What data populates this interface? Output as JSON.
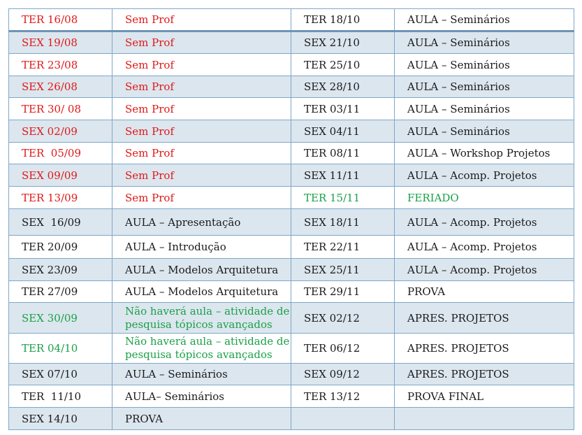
{
  "colors": {
    "red": "#e01818",
    "green": "#1aa048",
    "black": "#1a1a1a",
    "stripe": "#dce6ee",
    "border": "#7fa7c9"
  },
  "rows": [
    {
      "d1": "TER 16/08",
      "a1": "Sem Prof",
      "c1": "red",
      "d2": "TER 18/10",
      "a2": "AULA – Seminários",
      "c2": "black"
    },
    {
      "d1": "SEX 19/08",
      "a1": "Sem Prof",
      "c1": "red",
      "d2": "SEX 21/10",
      "a2": "AULA – Seminários",
      "c2": "black"
    },
    {
      "d1": "TER 23/08",
      "a1": "Sem Prof",
      "c1": "red",
      "d2": "TER 25/10",
      "a2": "AULA – Seminários",
      "c2": "black"
    },
    {
      "d1": "SEX 26/08",
      "a1": "Sem Prof",
      "c1": "red",
      "d2": "SEX 28/10",
      "a2": "AULA – Seminários",
      "c2": "black"
    },
    {
      "d1": "TER 30/ 08",
      "a1": "Sem Prof",
      "c1": "red",
      "d2": "TER 03/11",
      "a2": "AULA – Seminários",
      "c2": "black"
    },
    {
      "d1": "SEX 02/09",
      "a1": "Sem Prof",
      "c1": "red",
      "d2": "SEX 04/11",
      "a2": "AULA – Seminários",
      "c2": "black"
    },
    {
      "d1": "TER  05/09",
      "a1": "Sem Prof",
      "c1": "red",
      "d2": "TER 08/11",
      "a2": "AULA – Workshop Projetos",
      "c2": "black"
    },
    {
      "d1": "SEX 09/09",
      "a1": "Sem Prof",
      "c1": "red",
      "d2": "SEX 11/11",
      "a2": "AULA – Acomp. Projetos",
      "c2": "black"
    },
    {
      "d1": "TER 13/09",
      "a1": "Sem Prof",
      "c1": "red",
      "d2": "TER 15/11",
      "a2": "FERIADO",
      "c2": "green"
    },
    {
      "d1": "SEX  16/09",
      "a1": "AULA – Apresentação",
      "c1": "black",
      "d2": "SEX 18/11",
      "a2": "AULA – Acomp. Projetos",
      "c2": "black"
    },
    {
      "d1": "TER 20/09",
      "a1": "AULA – Introdução",
      "c1": "black",
      "d2": "TER 22/11",
      "a2": "AULA – Acomp. Projetos",
      "c2": "black"
    },
    {
      "d1": "SEX 23/09",
      "a1": "AULA – Modelos Arquitetura",
      "c1": "black",
      "d2": "SEX 25/11",
      "a2": "AULA – Acomp. Projetos",
      "c2": "black"
    },
    {
      "d1": "TER 27/09",
      "a1": "AULA – Modelos Arquitetura",
      "c1": "black",
      "d2": "TER 29/11",
      "a2": "PROVA",
      "c2": "black"
    },
    {
      "d1": "SEX 30/09",
      "a1": "Não haverá aula –  atividade de pesquisa tópicos avançados",
      "c1": "green",
      "d2": "SEX 02/12",
      "a2": "APRES. PROJETOS",
      "c2": "black"
    },
    {
      "d1": "TER 04/10",
      "a1": "Não haverá aula –  atividade de pesquisa tópicos avançados",
      "c1": "green",
      "d2": "TER 06/12",
      "a2": "APRES. PROJETOS",
      "c2": "black"
    },
    {
      "d1": "SEX 07/10",
      "a1": "AULA – Seminários",
      "c1": "black",
      "d2": "SEX 09/12",
      "a2": "APRES. PROJETOS",
      "c2": "black"
    },
    {
      "d1": "TER  11/10",
      "a1": "AULA– Seminários",
      "c1": "black",
      "d2": "TER 13/12",
      "a2": "PROVA FINAL",
      "c2": "black"
    },
    {
      "d1": "SEX 14/10",
      "a1": "PROVA",
      "c1": "black",
      "d2": "",
      "a2": "",
      "c2": "black"
    }
  ]
}
